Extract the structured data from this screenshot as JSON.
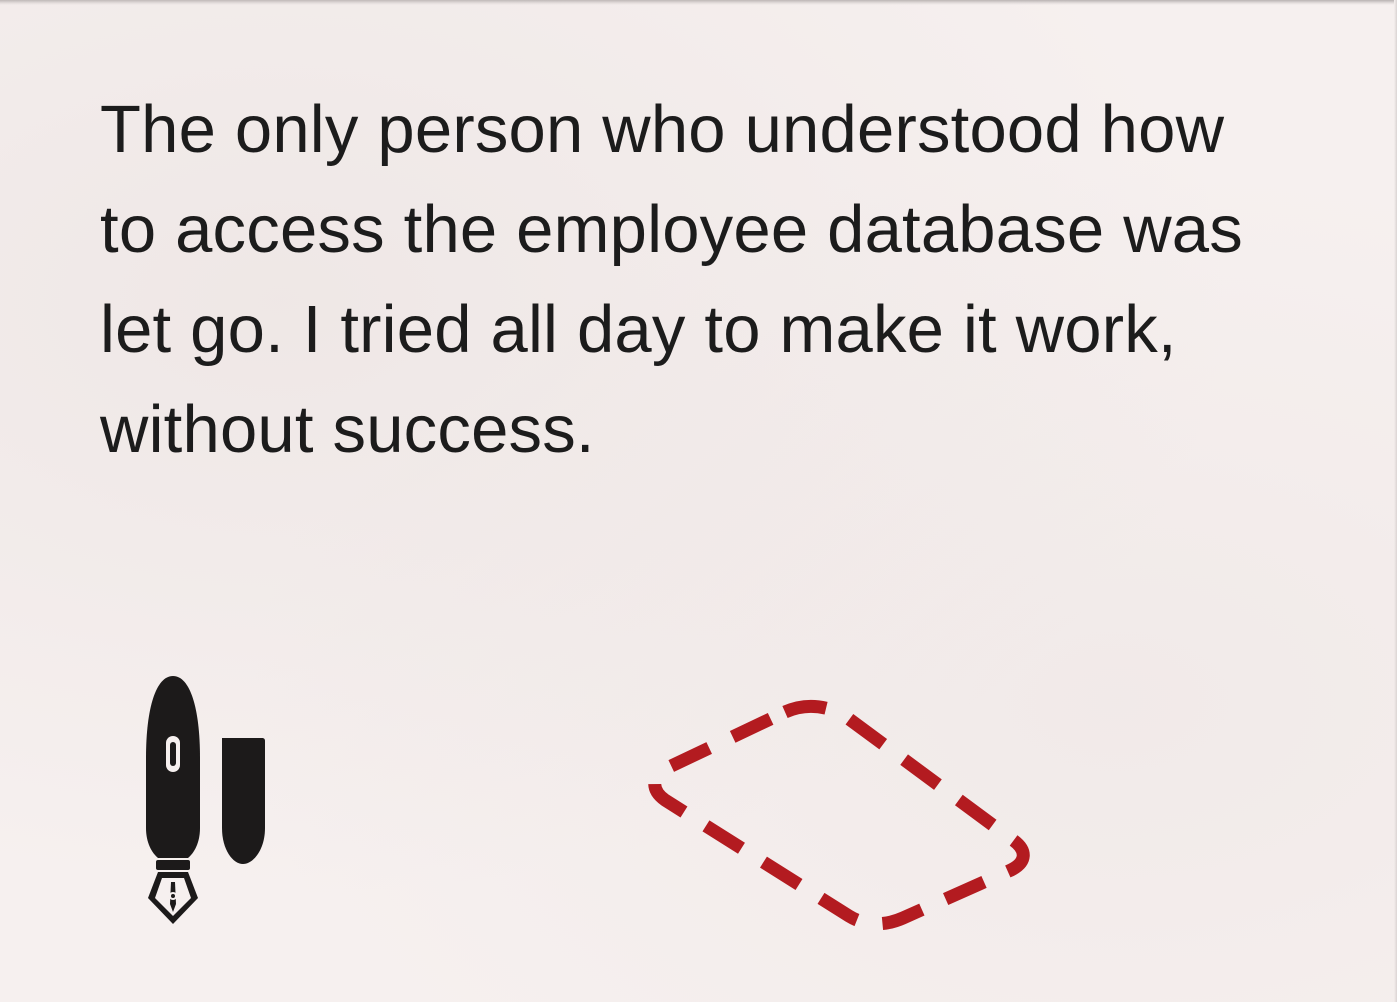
{
  "story": {
    "lines": [
      "The only person who understood how",
      "to access the employee database was",
      "let go. I tried all day to make it work,",
      "without success."
    ]
  },
  "icons": {
    "pen": "fountain-pen-with-cap-icon",
    "shape": "dashed-outline-diamond-icon"
  },
  "colors": {
    "background": "#f6f0ef",
    "text": "#1c1c1c",
    "pen": "#1c1a1a",
    "dashed_shape": "#b31b20"
  }
}
